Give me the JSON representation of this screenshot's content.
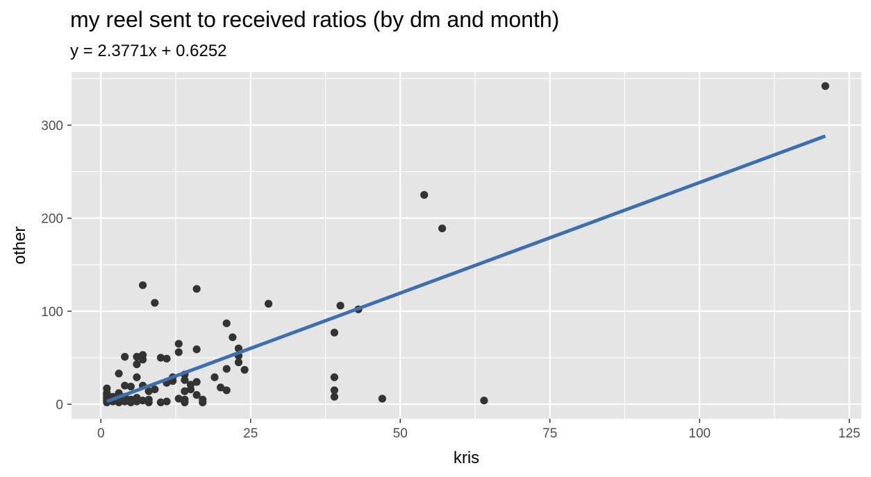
{
  "title": "my reel sent to received ratios (by dm and month)",
  "subtitle": "y = 2.3771x + 0.6252",
  "chart_data": {
    "type": "scatter",
    "title": "my reel sent to received ratios (by dm and month)",
    "subtitle": "y = 2.3771x + 0.6252",
    "xlabel": "kris",
    "ylabel": "other",
    "xlim": [
      -4.9,
      127
    ],
    "ylim": [
      -15.6,
      357
    ],
    "xticks": [
      0,
      25,
      50,
      75,
      100,
      125
    ],
    "yticks": [
      0,
      100,
      200,
      300
    ],
    "grid": true,
    "colors": {
      "panel": "#e5e5e5",
      "grid": "#ffffff",
      "points": "#333333",
      "fit_line": "#3d6faa"
    },
    "fit": {
      "slope": 2.3771,
      "intercept": 0.6252,
      "x_range": [
        1,
        121
      ]
    },
    "points": [
      [
        121,
        342
      ],
      [
        54,
        225
      ],
      [
        57,
        189
      ],
      [
        7,
        128
      ],
      [
        16,
        124
      ],
      [
        9,
        109
      ],
      [
        28,
        108
      ],
      [
        40,
        106
      ],
      [
        43,
        102
      ],
      [
        21,
        87
      ],
      [
        39,
        77
      ],
      [
        22,
        72
      ],
      [
        13,
        65
      ],
      [
        23,
        60
      ],
      [
        16,
        59
      ],
      [
        13,
        56
      ],
      [
        4,
        51
      ],
      [
        6,
        51
      ],
      [
        7,
        53
      ],
      [
        7,
        48
      ],
      [
        10,
        50
      ],
      [
        11,
        49
      ],
      [
        23,
        52
      ],
      [
        23,
        45
      ],
      [
        6,
        43
      ],
      [
        21,
        38
      ],
      [
        24,
        37
      ],
      [
        3,
        33
      ],
      [
        12,
        29
      ],
      [
        14,
        32
      ],
      [
        14,
        26
      ],
      [
        6,
        29
      ],
      [
        39,
        29
      ],
      [
        16,
        24
      ],
      [
        11,
        23
      ],
      [
        12,
        25
      ],
      [
        15,
        21
      ],
      [
        20,
        18
      ],
      [
        21,
        15
      ],
      [
        39,
        15
      ],
      [
        4,
        20
      ],
      [
        5,
        19
      ],
      [
        7,
        20
      ],
      [
        9,
        16
      ],
      [
        8,
        14
      ],
      [
        1,
        17
      ],
      [
        2,
        8
      ],
      [
        3,
        12
      ],
      [
        15,
        16
      ],
      [
        14,
        14
      ],
      [
        19,
        29
      ],
      [
        16,
        10
      ],
      [
        39,
        8
      ],
      [
        17,
        5
      ],
      [
        17,
        2
      ],
      [
        47,
        6
      ],
      [
        64,
        4
      ],
      [
        1,
        2
      ],
      [
        1,
        4
      ],
      [
        1,
        7
      ],
      [
        1,
        10
      ],
      [
        1,
        12
      ],
      [
        2,
        3
      ],
      [
        2,
        5
      ],
      [
        3,
        2
      ],
      [
        3,
        6
      ],
      [
        4,
        3
      ],
      [
        4,
        8
      ],
      [
        5,
        2
      ],
      [
        5,
        5
      ],
      [
        6,
        3
      ],
      [
        6,
        7
      ],
      [
        7,
        4
      ],
      [
        8,
        2
      ],
      [
        8,
        5
      ],
      [
        10,
        2
      ],
      [
        11,
        3
      ],
      [
        13,
        6
      ],
      [
        14,
        2
      ],
      [
        14,
        5
      ]
    ]
  }
}
